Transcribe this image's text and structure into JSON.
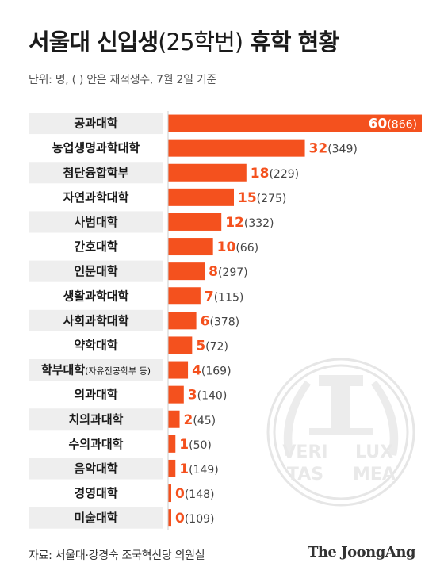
{
  "header": {
    "title_main": "서울대 신입생",
    "title_paren": "(25학번)",
    "title_end": "휴학 현황",
    "subtitle": "단위: 명, ( ) 안은 재적생수, 7월 2일 기준"
  },
  "chart_data": {
    "type": "bar",
    "orientation": "horizontal",
    "categories": [
      "공과대학",
      "농업생명과학대학",
      "첨단융합학부",
      "자연과학대학",
      "사범대학",
      "간호대학",
      "인문대학",
      "생활과학대학",
      "사회과학대학",
      "약학대학",
      "학부대학",
      "의과대학",
      "치의과대학",
      "수의과대학",
      "음악대학",
      "경영대학",
      "미술대학"
    ],
    "category_notes": [
      "",
      "",
      "",
      "",
      "",
      "",
      "",
      "",
      "",
      "",
      "(자유전공학부 등)",
      "",
      "",
      "",
      "",
      "",
      ""
    ],
    "values": [
      60,
      32,
      18,
      15,
      12,
      10,
      8,
      7,
      6,
      5,
      4,
      3,
      2,
      1,
      1,
      0,
      0
    ],
    "enrolled": [
      "(866)",
      "(349)",
      "(229)",
      "(275)",
      "(332)",
      "(66)",
      "(297)",
      "(115)",
      "(378)",
      "(72)",
      "(169)",
      "(140)",
      "(45)",
      "(50)",
      "(149)",
      "(148)",
      "(109)"
    ],
    "value_labels": [
      "60",
      "32",
      "18",
      "15",
      "12",
      "10",
      "8",
      "7",
      "6",
      "5",
      "4",
      "3",
      "2",
      "1",
      "1",
      "0",
      "0"
    ],
    "xlim": [
      0,
      60
    ],
    "bar_color": "#f4511e",
    "grid": false,
    "legend": "none"
  },
  "seal": {
    "line1": "VERI",
    "line2": "LUX",
    "line3": "TAS",
    "line4": "MEA"
  },
  "footer": {
    "source": "자료: 서울대·강경숙 조국혁신당 의원실",
    "brand": "The JoongAng"
  }
}
